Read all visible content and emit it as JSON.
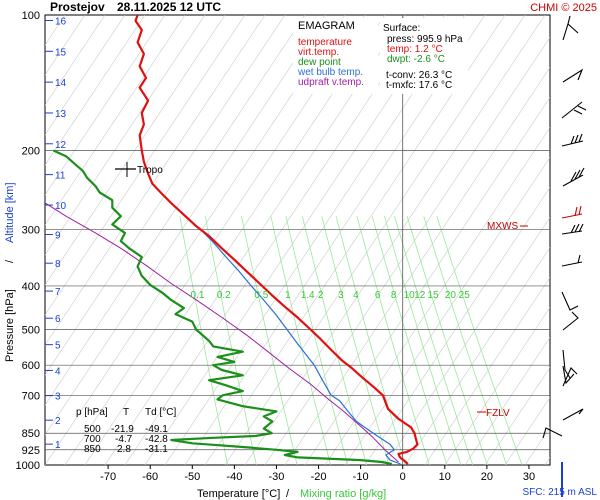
{
  "header": {
    "station": "Prostejov",
    "datetime": "28.11.2025 12 UTC",
    "credit": "CHMI © 2025"
  },
  "legend": {
    "title": "EMAGRAM",
    "items": [
      {
        "label": "temperature",
        "color": "#e01010"
      },
      {
        "label": "virt.temp.",
        "color": "#e01010"
      },
      {
        "label": "dew point",
        "color": "#1a8f1a"
      },
      {
        "label": "wet bulb temp.",
        "color": "#2a6fd6"
      },
      {
        "label": "udpraft v.temp.",
        "color": "#a020a0"
      }
    ]
  },
  "surface": {
    "title": "Surface:",
    "press": "press: 995.9 hPa",
    "temp": "temp: 1.2 °C",
    "dwpt": "dwpt: -2.6 °C",
    "tconv": "t-conv: 26.3 °C",
    "tmxfc": "t-mxfc: 17.6 °C"
  },
  "table": {
    "headers": [
      "p [hPa]",
      "T",
      "Td [°C]"
    ],
    "rows": [
      [
        "500",
        "-21.9",
        "-49.1"
      ],
      [
        "700",
        "-4.7",
        "-42.8"
      ],
      [
        "850",
        "2.8",
        "-31.1"
      ]
    ]
  },
  "annotations": {
    "tropo": "Tropo",
    "mxws": "MXWS",
    "fzlv": "FZLV",
    "sfc": "SFC: 215 m ASL"
  },
  "chart_data": {
    "type": "line",
    "title": "Prostejov 28.11.2025 12 UTC",
    "xlabel": "Temperature [°C]",
    "xlabel_sep": "/",
    "xlabel2": "Mixing ratio [g/kg]",
    "ylabel": "Pressure [hPa]",
    "ylabel_sep": "/",
    "ylabel2": "Altitude [km]",
    "xlim": [
      -85,
      35
    ],
    "ylim": [
      1000,
      100
    ],
    "yscale": "log",
    "x_ticks": [
      -70,
      -60,
      -50,
      -40,
      -30,
      -20,
      -10,
      0,
      10,
      20,
      30
    ],
    "p_ticks": [
      100,
      200,
      300,
      400,
      500,
      600,
      700,
      850,
      925,
      1000
    ],
    "alt_ticks": [
      "16",
      "15",
      "14",
      "13",
      "12",
      "11",
      "10",
      "9",
      "8",
      "7",
      "6",
      "5",
      "4",
      "3",
      "2",
      "1"
    ],
    "mixing_ratio_labels": [
      "0.1",
      "0.2",
      "0.5",
      "1",
      "1.4",
      "2",
      "3",
      "4",
      "6",
      "8",
      "10",
      "12",
      "15",
      "20",
      "25"
    ],
    "series": [
      {
        "name": "temperature",
        "color": "#e01010",
        "points": [
          [
            1.2,
            995
          ],
          [
            0.5,
            980
          ],
          [
            -0.5,
            965
          ],
          [
            -0.8,
            955
          ],
          [
            -1,
            945
          ],
          [
            1,
            935
          ],
          [
            2.5,
            920
          ],
          [
            3.5,
            900
          ],
          [
            3.2,
            880
          ],
          [
            2.8,
            850
          ],
          [
            2,
            825
          ],
          [
            -1,
            790
          ],
          [
            -3.5,
            750
          ],
          [
            -4.7,
            700
          ],
          [
            -7,
            670
          ],
          [
            -9.5,
            640
          ],
          [
            -12,
            610
          ],
          [
            -14.5,
            585
          ],
          [
            -17,
            555
          ],
          [
            -19.5,
            525
          ],
          [
            -21.9,
            500
          ],
          [
            -25,
            470
          ],
          [
            -28,
            445
          ],
          [
            -31,
            420
          ],
          [
            -34,
            395
          ],
          [
            -37,
            372
          ],
          [
            -40,
            350
          ],
          [
            -43,
            330
          ],
          [
            -46,
            310
          ],
          [
            -49,
            295
          ],
          [
            -52,
            278
          ],
          [
            -55,
            262
          ],
          [
            -57.5,
            248
          ],
          [
            -59.5,
            237
          ],
          [
            -60.5,
            225
          ],
          [
            -61.5,
            212
          ],
          [
            -62,
            200
          ],
          [
            -62.5,
            185
          ],
          [
            -61.5,
            175
          ],
          [
            -62,
            165
          ],
          [
            -60.5,
            155
          ],
          [
            -62.5,
            145
          ],
          [
            -61,
            138
          ],
          [
            -62.5,
            130
          ],
          [
            -61.5,
            122
          ],
          [
            -63,
            115
          ],
          [
            -62,
            108
          ],
          [
            -63.5,
            103
          ],
          [
            -63,
            100
          ]
        ]
      },
      {
        "name": "dew point",
        "color": "#1a8f1a",
        "points": [
          [
            -2.6,
            995
          ],
          [
            -5,
            985
          ],
          [
            -10,
            975
          ],
          [
            -18,
            968
          ],
          [
            -25,
            962
          ],
          [
            -28,
            950
          ],
          [
            -25,
            935
          ],
          [
            -30,
            925
          ],
          [
            -38,
            912
          ],
          [
            -45,
            902
          ],
          [
            -50,
            895
          ],
          [
            -55,
            880
          ],
          [
            -45,
            870
          ],
          [
            -35,
            862
          ],
          [
            -31.1,
            850
          ],
          [
            -33,
            830
          ],
          [
            -31,
            800
          ],
          [
            -33,
            780
          ],
          [
            -30,
            760
          ],
          [
            -38,
            740
          ],
          [
            -44,
            715
          ],
          [
            -42.8,
            700
          ],
          [
            -38,
            685
          ],
          [
            -42,
            665
          ],
          [
            -46,
            648
          ],
          [
            -38,
            632
          ],
          [
            -43,
            615
          ],
          [
            -45,
            600
          ],
          [
            -40,
            590
          ],
          [
            -44,
            575
          ],
          [
            -38,
            560
          ],
          [
            -45,
            545
          ],
          [
            -46,
            530
          ],
          [
            -49.1,
            500
          ],
          [
            -50,
            480
          ],
          [
            -54,
            462
          ],
          [
            -52,
            448
          ],
          [
            -55,
            430
          ],
          [
            -57,
            415
          ],
          [
            -60,
            398
          ],
          [
            -62,
            380
          ],
          [
            -63,
            362
          ],
          [
            -62,
            345
          ],
          [
            -65,
            330
          ],
          [
            -67,
            318
          ],
          [
            -66,
            305
          ],
          [
            -69,
            292
          ],
          [
            -67,
            280
          ],
          [
            -69,
            268
          ],
          [
            -69,
            258
          ],
          [
            -72,
            248
          ],
          [
            -73,
            240
          ],
          [
            -75,
            230
          ],
          [
            -76,
            222
          ],
          [
            -78,
            214
          ],
          [
            -80,
            206
          ],
          [
            -83,
            200
          ]
        ]
      },
      {
        "name": "wet bulb temp.",
        "color": "#2a6fd6",
        "points": [
          [
            -0.5,
            995
          ],
          [
            -3,
            975
          ],
          [
            -4,
            950
          ],
          [
            -2,
            925
          ],
          [
            -3,
            900
          ],
          [
            -5,
            875
          ],
          [
            -7,
            850
          ],
          [
            -9,
            825
          ],
          [
            -11,
            800
          ],
          [
            -13,
            760
          ],
          [
            -15,
            720
          ],
          [
            -17,
            700
          ],
          [
            -19,
            650
          ],
          [
            -21,
            600
          ],
          [
            -23.5,
            560
          ],
          [
            -25.5,
            530
          ],
          [
            -27.5,
            500
          ],
          [
            -30,
            465
          ],
          [
            -33,
            430
          ],
          [
            -36,
            400
          ],
          [
            -39,
            370
          ],
          [
            -42,
            345
          ],
          [
            -45,
            320
          ],
          [
            -48,
            300
          ]
        ]
      },
      {
        "name": "udpraft v.temp.",
        "color": "#a020a0",
        "points": [
          [
            -1,
            985
          ],
          [
            -4,
            930
          ],
          [
            -7,
            870
          ],
          [
            -10,
            820
          ],
          [
            -14,
            760
          ],
          [
            -18,
            710
          ],
          [
            -22,
            660
          ],
          [
            -27,
            610
          ],
          [
            -32,
            560
          ],
          [
            -37,
            515
          ],
          [
            -43,
            470
          ],
          [
            -49,
            430
          ],
          [
            -55,
            395
          ],
          [
            -61,
            360
          ],
          [
            -67,
            330
          ],
          [
            -73,
            305
          ],
          [
            -80,
            280
          ],
          [
            -86,
            258
          ]
        ]
      }
    ]
  }
}
